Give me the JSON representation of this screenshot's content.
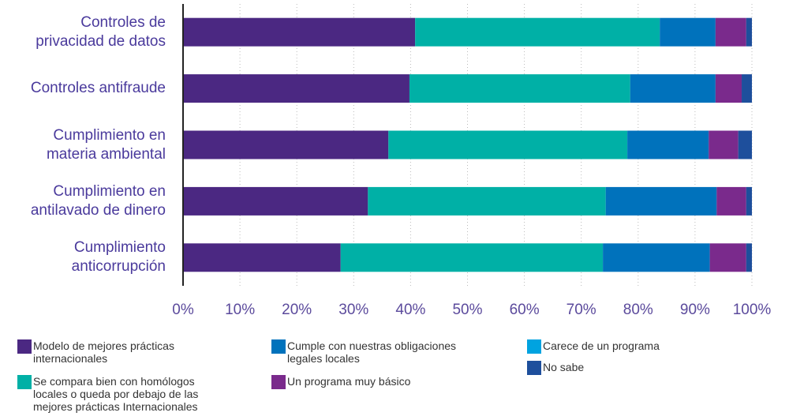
{
  "chart_data": {
    "type": "stacked-barh",
    "categories": [
      "Controles de\nprivacidad de datos",
      "Controles antifraude",
      "Cumplimiento en\nmateria ambiental",
      "Cumplimiento en\nantilavado de dinero",
      "Cumplimiento\nanticorrupción"
    ],
    "series": [
      {
        "name": "Modelo de mejores prácticas internacionales",
        "color": "#4b2882",
        "values": [
          40.8,
          39.8,
          36.1,
          32.5,
          27.7
        ]
      },
      {
        "name": "Se compara bien con homólogos locales o queda por debajo de las mejores prácticas Internacionales",
        "color": "#00b0a6",
        "values": [
          43.0,
          38.8,
          42.0,
          41.8,
          46.1
        ]
      },
      {
        "name": "Cumple con nuestras obligaciones legales locales",
        "color": "#0072bc",
        "values": [
          9.8,
          15.0,
          14.3,
          19.5,
          18.8
        ]
      },
      {
        "name": "Carece de un programa",
        "color": "#00a3e0",
        "values": [
          0,
          0,
          0,
          0,
          0
        ]
      },
      {
        "name": "Un programa muy básico",
        "color": "#7a2a8c",
        "values": [
          5.4,
          4.6,
          5.2,
          5.2,
          6.4
        ]
      },
      {
        "name": "No sabe",
        "color": "#1e4f9c",
        "values": [
          1.0,
          1.8,
          2.4,
          1.0,
          1.0
        ]
      }
    ],
    "xlim": [
      0,
      100
    ],
    "xticks": [
      {
        "value": 0,
        "label": "0%"
      },
      {
        "value": 10,
        "label": "10%"
      },
      {
        "value": 20,
        "label": "20%"
      },
      {
        "value": 30,
        "label": "30%"
      },
      {
        "value": 40,
        "label": "40%"
      },
      {
        "value": 50,
        "label": "50%"
      },
      {
        "value": 60,
        "label": "60%"
      },
      {
        "value": 70,
        "label": "70%"
      },
      {
        "value": 80,
        "label": "80%"
      },
      {
        "value": 90,
        "label": "90%"
      },
      {
        "value": 100,
        "label": "100%"
      }
    ],
    "grid": true
  }
}
